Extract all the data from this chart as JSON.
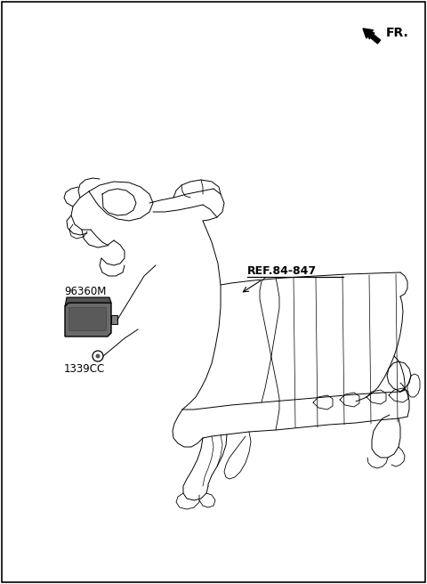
{
  "background_color": "#ffffff",
  "border_color": "#000000",
  "fig_width": 4.8,
  "fig_height": 6.56,
  "dpi": 100,
  "fr_label": "FR.",
  "label_96360M": "96360M",
  "label_1339CC": "1339CC",
  "label_ref": "REF.84-847",
  "line_color": "#000000",
  "part_fill": "#707070",
  "part_edge": "#000000"
}
